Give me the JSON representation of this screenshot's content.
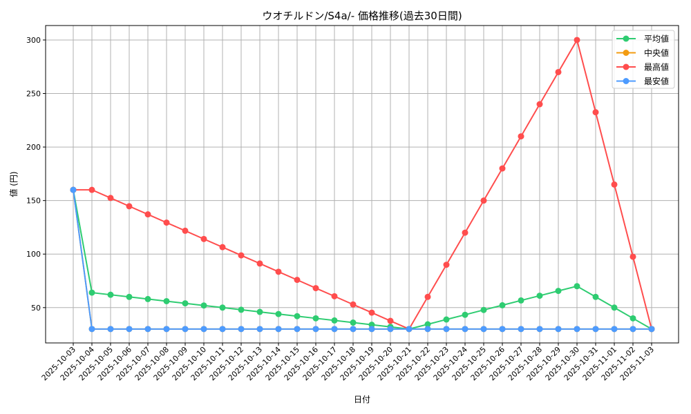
{
  "chart_data": {
    "type": "line",
    "title": "ウオチルドン/S4a/- 価格推移(過去30日間)",
    "xlabel": "日付",
    "ylabel": "値 (円)",
    "ylim": [
      17,
      313.5
    ],
    "yticks": [
      50,
      100,
      150,
      200,
      250,
      300
    ],
    "grid": true,
    "legend_position": "top-right",
    "x": [
      "2025-10-03",
      "2025-10-04",
      "2025-10-05",
      "2025-10-06",
      "2025-10-07",
      "2025-10-08",
      "2025-10-09",
      "2025-10-10",
      "2025-10-11",
      "2025-10-12",
      "2025-10-13",
      "2025-10-14",
      "2025-10-15",
      "2025-10-16",
      "2025-10-17",
      "2025-10-18",
      "2025-10-19",
      "2025-10-20",
      "2025-10-21",
      "2025-10-22",
      "2025-10-23",
      "2025-10-24",
      "2025-10-25",
      "2025-10-26",
      "2025-10-27",
      "2025-10-28",
      "2025-10-29",
      "2025-10-30",
      "2025-10-31",
      "2025-11-01",
      "2025-11-02",
      "2025-11-03"
    ],
    "series": [
      {
        "name": "平均値",
        "color": "#2ecc71",
        "values": [
          160,
          64,
          62,
          60,
          58,
          56,
          54,
          52,
          50,
          48,
          46,
          44,
          42,
          40,
          38,
          36,
          34,
          32,
          30,
          34.4,
          38.9,
          43.3,
          47.8,
          52.2,
          56.7,
          61.1,
          65.6,
          70,
          60,
          50,
          40,
          30
        ]
      },
      {
        "name": "中央値",
        "color": "#f39c12",
        "values": [
          160,
          30,
          30,
          30,
          30,
          30,
          30,
          30,
          30,
          30,
          30,
          30,
          30,
          30,
          30,
          30,
          30,
          30,
          30,
          30,
          30,
          30,
          30,
          30,
          30,
          30,
          30,
          30,
          30,
          30,
          30,
          30
        ]
      },
      {
        "name": "最高値",
        "color": "#ff4d4d",
        "values": [
          160,
          160,
          152.4,
          144.7,
          137.1,
          129.4,
          121.8,
          114.1,
          106.5,
          98.8,
          91.2,
          83.5,
          75.9,
          68.2,
          60.6,
          52.9,
          45.3,
          37.6,
          30,
          60,
          90,
          120,
          150,
          180,
          210,
          240,
          270,
          300,
          232.5,
          165,
          97.5,
          30
        ]
      },
      {
        "name": "最安値",
        "color": "#4d9bff",
        "values": [
          160,
          30,
          30,
          30,
          30,
          30,
          30,
          30,
          30,
          30,
          30,
          30,
          30,
          30,
          30,
          30,
          30,
          30,
          30,
          30,
          30,
          30,
          30,
          30,
          30,
          30,
          30,
          30,
          30,
          30,
          30,
          30
        ]
      }
    ]
  }
}
